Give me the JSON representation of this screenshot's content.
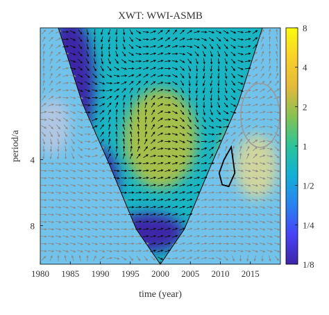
{
  "chart_data": {
    "type": "heatmap",
    "title": "XWT: WWI-ASMB",
    "xlabel": "time (year)",
    "ylabel": "period/a",
    "xlim": [
      1980,
      2020
    ],
    "ylim": [
      1,
      12
    ],
    "x_ticks": [
      1980,
      1985,
      1990,
      1995,
      2000,
      2005,
      2010,
      2015
    ],
    "y_ticks": [
      {
        "value": 4,
        "label": "4"
      },
      {
        "value": 8,
        "label": "8"
      }
    ],
    "colorbar": {
      "scale": "log2",
      "range": [
        0.125,
        8
      ],
      "ticks": [
        {
          "value": 8,
          "label": "8"
        },
        {
          "value": 4,
          "label": "4"
        },
        {
          "value": 2,
          "label": "2"
        },
        {
          "value": 1,
          "label": "1"
        },
        {
          "value": 0.5,
          "label": "1/2"
        },
        {
          "value": 0.25,
          "label": "1/4"
        },
        {
          "value": 0.125,
          "label": "1/8"
        }
      ],
      "colormap": [
        "#3e26a8",
        "#4743f7",
        "#2a82f1",
        "#13aed6",
        "#2ac49a",
        "#86c253",
        "#e4b93a",
        "#f9d02a",
        "#f9fb0e"
      ]
    },
    "regions": [
      {
        "name": "low-power-early",
        "x_center": 1985,
        "period_center": 1.8,
        "x_span": 8,
        "period_span": 1.6,
        "power": 0.125
      },
      {
        "name": "low-power-mid",
        "x_center": 1988,
        "period_center": 5.0,
        "x_span": 10,
        "period_span": 2.2,
        "power": 0.125
      },
      {
        "name": "low-power-late",
        "x_center": 1998,
        "period_center": 8.6,
        "x_span": 12,
        "period_span": 1.4,
        "power": 0.125
      },
      {
        "name": "moderate-power",
        "x_center": 2000,
        "period_center": 3.2,
        "x_span": 12,
        "period_span": 2.0,
        "power": 2
      },
      {
        "name": "high-power",
        "x_center": 2013,
        "period_center": 4.3,
        "x_span": 6,
        "period_span": 2.0,
        "power": 4
      }
    ],
    "significance_contour": {
      "x": [
        2009.8,
        2010.6,
        2011.8,
        2012.4,
        2011.4,
        2010.3,
        2009.8
      ],
      "y": [
        4.6,
        4.0,
        3.5,
        4.6,
        5.3,
        5.2,
        4.6
      ]
    }
  }
}
